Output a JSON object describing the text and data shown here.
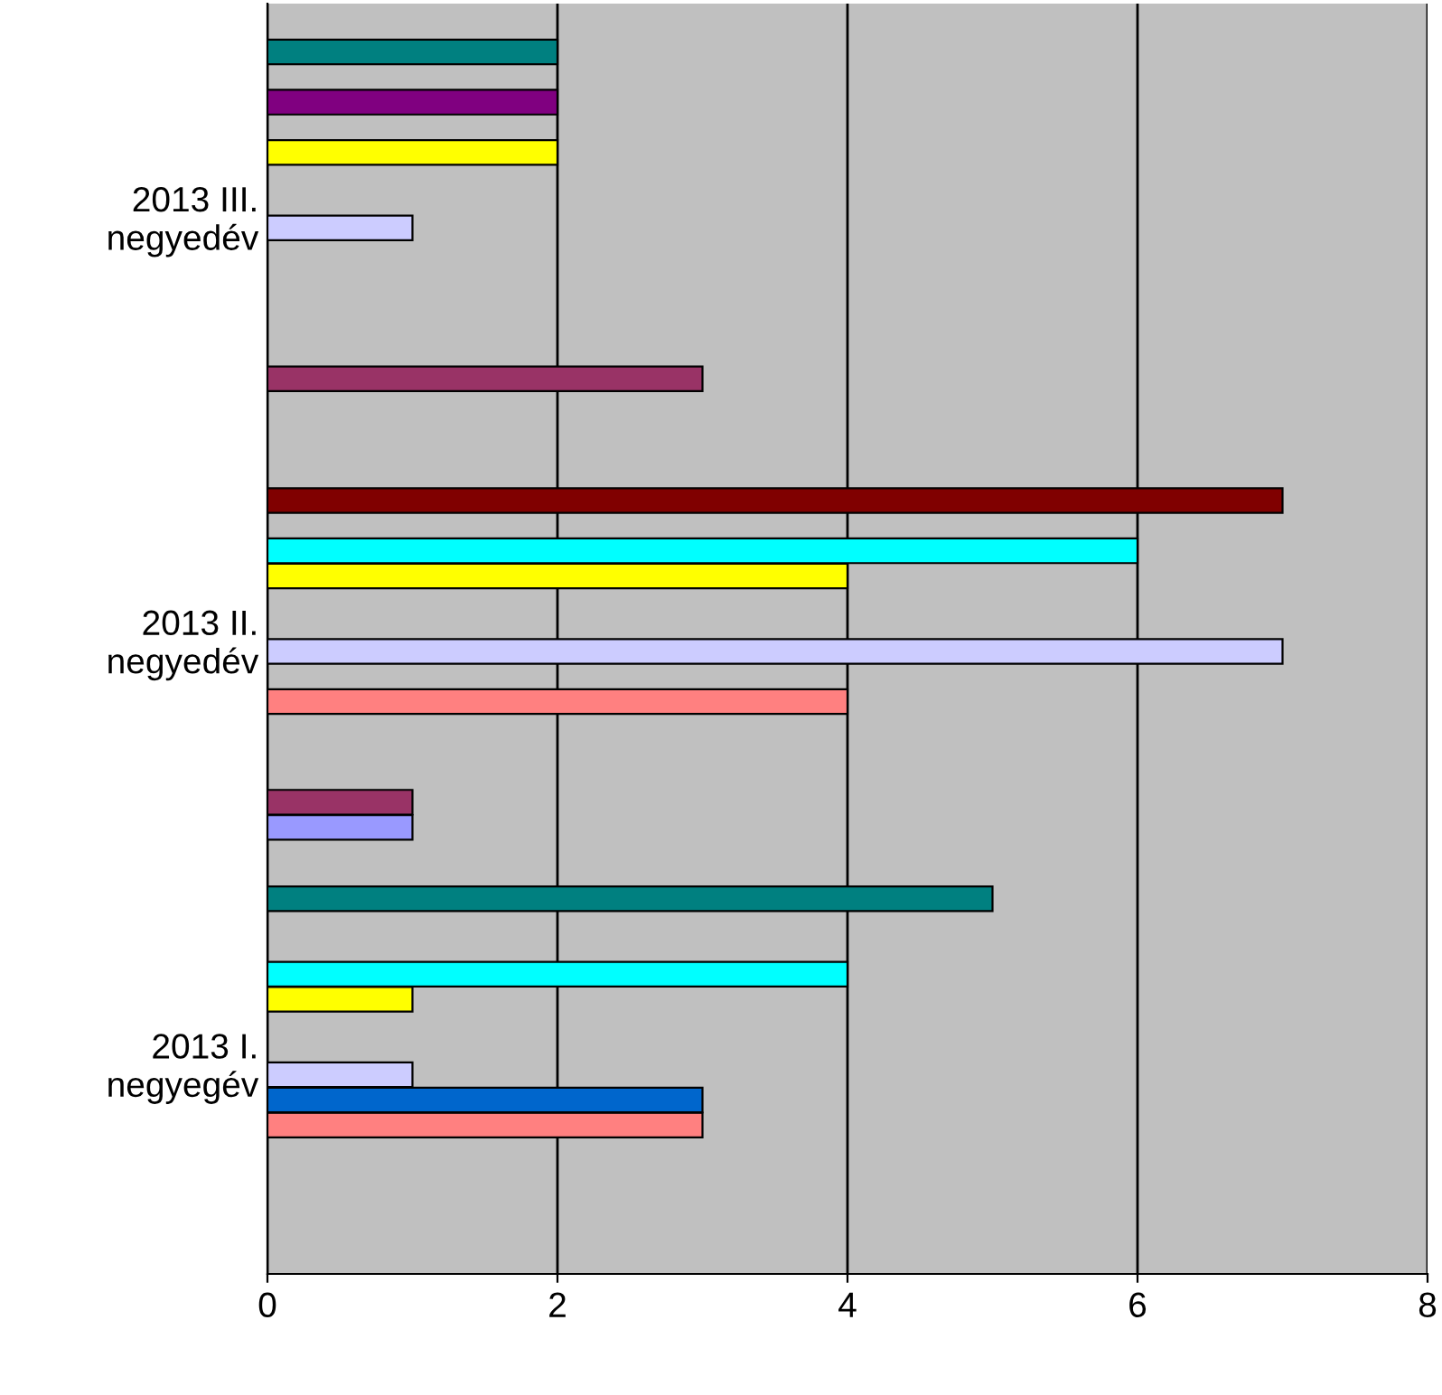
{
  "chart_data": {
    "type": "bar",
    "orientation": "horizontal",
    "categories": [
      "2013 III.\nnegyedév",
      "2013 II.\nnegyedév",
      "2013 I.\nnegyegév"
    ],
    "series": [
      {
        "color": "#9999ff",
        "values": [
          null,
          1,
          null
        ]
      },
      {
        "color": "#993366",
        "values": [
          3,
          1,
          null
        ]
      },
      {
        "values": [
          null,
          null,
          null
        ]
      },
      {
        "values": [
          null,
          null,
          null
        ]
      },
      {
        "values": [
          null,
          null,
          null
        ]
      },
      {
        "color": "#ff8080",
        "values": [
          null,
          4,
          3
        ]
      },
      {
        "color": "#0066cc",
        "values": [
          null,
          null,
          3
        ]
      },
      {
        "color": "#ccccff",
        "values": [
          1,
          7,
          1
        ]
      },
      {
        "values": [
          null,
          null,
          null
        ]
      },
      {
        "values": [
          null,
          null,
          null
        ]
      },
      {
        "color": "#ffff00",
        "values": [
          2,
          4,
          1
        ]
      },
      {
        "color": "#00ffff",
        "values": [
          null,
          6,
          4
        ]
      },
      {
        "color": "#800080",
        "values": [
          2,
          null,
          null
        ]
      },
      {
        "color": "#800000",
        "values": [
          null,
          7,
          null
        ]
      },
      {
        "color": "#008080",
        "values": [
          2,
          null,
          5
        ]
      },
      {
        "values": [
          null,
          null,
          null
        ]
      }
    ],
    "xlim": [
      0,
      8
    ],
    "xticks": [
      0,
      2,
      4,
      6,
      8
    ],
    "grid": "x"
  }
}
